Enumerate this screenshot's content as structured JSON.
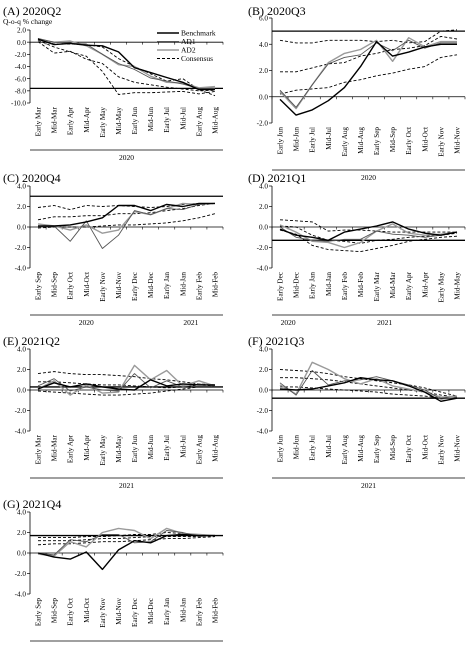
{
  "figure": {
    "ylabel": "Q-o-q % change",
    "legend": [
      "Benchmark",
      "AD1",
      "AD2",
      "Consensus"
    ]
  },
  "chart_data": [
    {
      "id": "A",
      "type": "line",
      "title": "(A) 2020Q2",
      "ylim": [
        -10.0,
        2.0
      ],
      "yticks": [
        -10.0,
        -8.0,
        -6.0,
        -4.0,
        -2.0,
        0.0,
        2.0
      ],
      "categories": [
        "Early Mar",
        "Mid-Mar",
        "Early Apr",
        "Mid-Apr",
        "Early May",
        "Mid-May",
        "Early Jun",
        "Mid-Jun",
        "Early Jul",
        "Mid-Jul",
        "Early Aug",
        "Mid-Aug"
      ],
      "years": [
        {
          "label": "2020",
          "from": 0,
          "to": 11
        }
      ],
      "hline": -7.6,
      "series": [
        {
          "name": "Benchmark",
          "style": "benchmark",
          "values": [
            0.5,
            -0.4,
            -0.2,
            -0.5,
            -0.6,
            -1.6,
            -4.2,
            -5.0,
            -5.8,
            -6.6,
            -7.8,
            -7.8
          ]
        },
        {
          "name": "AD1",
          "style": "ad1",
          "values": [
            0.6,
            0.0,
            -0.2,
            -0.3,
            -2.0,
            -3.5,
            -4.5,
            -5.9,
            -6.4,
            -6.9,
            -7.6,
            -7.6
          ]
        },
        {
          "name": "AD2",
          "style": "ad2",
          "values": [
            0.4,
            0.0,
            0.2,
            -0.6,
            -2.0,
            -3.7,
            -4.0,
            -5.6,
            -6.6,
            -6.7,
            -7.5,
            -7.3
          ]
        },
        {
          "name": "Consensus",
          "style": "consensus",
          "values": [
            0.6,
            -0.3,
            -0.3,
            -0.4,
            -0.8,
            -2.7,
            -4.0,
            -5.2,
            -6.4,
            -6.0,
            -7.8,
            -8.8
          ]
        },
        {
          "style": "consensus",
          "values": [
            0.3,
            -0.8,
            -1.6,
            -2.3,
            -4.8,
            -8.6,
            -8.3,
            -8.3,
            -8.2,
            -8.1,
            -8.5,
            -8.1
          ]
        },
        {
          "style": "consensus",
          "values": [
            0.1,
            -1.8,
            -1.5,
            -2.8,
            -3.5,
            -5.7,
            -6.6,
            -7.0,
            -7.4,
            -7.7,
            -8.0,
            -7.9
          ]
        }
      ]
    },
    {
      "id": "B",
      "type": "line",
      "title": "(B) 2020Q3",
      "ylim": [
        -2.0,
        6.0
      ],
      "yticks": [
        -2.0,
        0.0,
        2.0,
        4.0,
        6.0
      ],
      "categories": [
        "Early Jun",
        "Mid-Jun",
        "Early Jul",
        "Mid-Jul",
        "Early Aug",
        "Mid-Aug",
        "Early Sep",
        "Mid-Sep",
        "Early Oct",
        "Mid-Oct",
        "Early Nov",
        "Mid-Nov"
      ],
      "years": [
        {
          "label": "2020",
          "from": 0,
          "to": 11
        }
      ],
      "hline": 5.0,
      "series": [
        {
          "style": "benchmark",
          "values": [
            -0.2,
            -1.4,
            -1.0,
            -0.3,
            0.7,
            2.3,
            4.2,
            3.1,
            3.4,
            3.8,
            4.0,
            4.0
          ]
        },
        {
          "style": "ad1",
          "values": [
            0.5,
            -0.8,
            0.9,
            2.5,
            3.0,
            3.2,
            4.1,
            3.5,
            4.3,
            3.7,
            4.1,
            4.1
          ]
        },
        {
          "style": "ad2",
          "values": [
            0.4,
            -0.9,
            0.9,
            2.6,
            3.3,
            3.6,
            4.3,
            2.7,
            4.5,
            3.8,
            4.2,
            4.2
          ]
        },
        {
          "style": "consensus",
          "values": [
            4.3,
            4.1,
            4.1,
            4.3,
            4.3,
            4.3,
            4.2,
            4.3,
            4.1,
            4.2,
            5.0,
            5.1
          ]
        },
        {
          "style": "consensus",
          "values": [
            1.9,
            1.9,
            2.2,
            2.5,
            2.6,
            3.1,
            3.3,
            3.6,
            3.7,
            3.9,
            4.6,
            4.4
          ]
        },
        {
          "style": "consensus",
          "values": [
            0.2,
            0.5,
            0.6,
            0.7,
            1.1,
            1.3,
            1.6,
            1.8,
            2.1,
            2.3,
            3.0,
            3.2
          ]
        }
      ]
    },
    {
      "id": "C",
      "type": "line",
      "title": "(C) 2020Q4",
      "ylim": [
        -4.0,
        4.0
      ],
      "yticks": [
        -4.0,
        -2.0,
        0.0,
        2.0,
        4.0
      ],
      "categories": [
        "Early Sep",
        "Mid-Sep",
        "Early Oct",
        "Mid-Oct",
        "Early Nov",
        "Mid-Nov",
        "Early Dec",
        "Mid-Dec",
        "Early Jan",
        "Mid-Jan",
        "Early Feb",
        "Mid-Feb"
      ],
      "years": [
        {
          "label": "2020",
          "from": 0,
          "to": 6
        },
        {
          "label": "2021",
          "from": 8,
          "to": 11
        }
      ],
      "hline": 3.0,
      "series": [
        {
          "style": "benchmark",
          "values": [
            0.1,
            0.1,
            0.2,
            0.5,
            0.9,
            2.1,
            2.1,
            1.6,
            2.2,
            2.0,
            2.3,
            2.3
          ]
        },
        {
          "style": "ad1",
          "values": [
            0.0,
            0.1,
            -1.4,
            0.6,
            -2.1,
            -0.8,
            1.6,
            1.2,
            1.8,
            1.7,
            2.2,
            2.3
          ]
        },
        {
          "style": "ad2",
          "values": [
            0.3,
            0.1,
            -0.3,
            0.2,
            -0.6,
            -0.3,
            1.5,
            1.2,
            1.8,
            2.3,
            2.2,
            2.3
          ]
        },
        {
          "style": "consensus",
          "values": [
            1.9,
            2.1,
            1.7,
            2.1,
            2.0,
            2.1,
            2.0,
            1.9,
            2.0,
            2.2,
            2.3,
            2.3
          ]
        },
        {
          "style": "consensus",
          "values": [
            0.7,
            1.0,
            1.0,
            1.1,
            1.1,
            1.3,
            1.3,
            1.4,
            1.6,
            1.8,
            2.1,
            2.3
          ]
        },
        {
          "style": "consensus",
          "values": [
            -0.1,
            0.0,
            0.0,
            0.0,
            0.1,
            0.2,
            0.2,
            0.3,
            0.4,
            0.6,
            0.9,
            1.3
          ]
        }
      ]
    },
    {
      "id": "D",
      "type": "line",
      "title": "(D) 2021Q1",
      "ylim": [
        -4.0,
        4.0
      ],
      "yticks": [
        -4.0,
        -2.0,
        0.0,
        2.0,
        4.0
      ],
      "categories": [
        "Early Dec",
        "Mid-Dec",
        "Early Jan",
        "Mid-Jan",
        "Early Feb",
        "Mid-Feb",
        "Early Mar",
        "Mid-Mar",
        "Early Apr",
        "Mid-Apr",
        "Early May",
        "Mid-May"
      ],
      "years": [
        {
          "label": "2020",
          "from": 0,
          "to": 1
        },
        {
          "label": "2021",
          "from": 2,
          "to": 11
        }
      ],
      "hline": -1.3,
      "series": [
        {
          "style": "benchmark",
          "values": [
            -0.2,
            -0.8,
            -1.0,
            -1.3,
            -0.5,
            -0.2,
            0.1,
            0.5,
            -0.2,
            -0.6,
            -0.8,
            -0.5
          ]
        },
        {
          "style": "ad1",
          "values": [
            0.0,
            -1.0,
            -1.3,
            -1.4,
            -1.2,
            -1.2,
            -0.4,
            -0.7,
            -0.8,
            -1.0,
            -0.8,
            -0.5
          ]
        },
        {
          "style": "ad2",
          "values": [
            0.2,
            -0.5,
            -1.4,
            -1.5,
            -2.0,
            -1.5,
            -0.4,
            0.3,
            -0.6,
            -0.8,
            -0.7,
            -0.5
          ]
        },
        {
          "style": "consensus",
          "values": [
            0.7,
            0.6,
            0.5,
            -0.4,
            -0.3,
            -0.3,
            -0.4,
            -0.5,
            -0.5,
            -0.5,
            -0.5,
            -0.5
          ]
        },
        {
          "style": "consensus",
          "values": [
            0.1,
            0.0,
            -0.8,
            -1.3,
            -1.4,
            -1.6,
            -1.3,
            -1.2,
            -1.0,
            -0.9,
            -0.8,
            -0.6
          ]
        },
        {
          "style": "consensus",
          "values": [
            -0.3,
            -0.7,
            -1.8,
            -2.2,
            -2.3,
            -2.4,
            -2.1,
            -1.8,
            -1.4,
            -1.2,
            -1.0,
            -0.9
          ]
        }
      ]
    },
    {
      "id": "E",
      "type": "line",
      "title": "(E) 2021Q2",
      "ylim": [
        -4.0,
        4.0
      ],
      "yticks": [
        -4.0,
        -2.0,
        0.0,
        2.0,
        4.0
      ],
      "categories": [
        "Early Mar",
        "Mid-Mar",
        "Early Apr",
        "Mid-Apr",
        "Early May",
        "Mid-May",
        "Early Jun",
        "Mid-Jun",
        "Early Jul",
        "Mid-Jul",
        "Early Aug",
        "Mid-Aug"
      ],
      "years": [
        {
          "label": "2021",
          "from": 0,
          "to": 11
        }
      ],
      "hline": 0.3,
      "series": [
        {
          "style": "benchmark",
          "values": [
            0.1,
            0.7,
            0.3,
            0.6,
            0.3,
            0.1,
            0.0,
            1.0,
            0.4,
            0.6,
            0.5,
            0.5
          ]
        },
        {
          "style": "ad1",
          "values": [
            0.4,
            1.1,
            -0.1,
            0.3,
            0.0,
            -0.1,
            1.6,
            0.2,
            0.9,
            0.3,
            0.6,
            0.4
          ]
        },
        {
          "style": "ad2",
          "values": [
            0.1,
            0.9,
            -0.5,
            0.5,
            -0.3,
            -0.2,
            2.4,
            1.0,
            1.9,
            0.4,
            0.9,
            0.4
          ]
        },
        {
          "style": "consensus",
          "values": [
            1.6,
            1.8,
            1.6,
            1.5,
            1.5,
            1.4,
            1.3,
            1.1,
            1.0,
            0.8,
            0.6,
            0.5
          ]
        },
        {
          "style": "consensus",
          "values": [
            0.8,
            0.8,
            0.7,
            0.6,
            0.5,
            0.5,
            0.4,
            0.3,
            0.2,
            0.3,
            0.5,
            0.4
          ]
        },
        {
          "style": "consensus",
          "values": [
            -0.1,
            -0.2,
            -0.3,
            -0.4,
            -0.5,
            -0.5,
            -0.4,
            -0.3,
            -0.1,
            0.1,
            0.3,
            0.3
          ]
        }
      ]
    },
    {
      "id": "F",
      "type": "line",
      "title": "(F) 2021Q3",
      "ylim": [
        -4.0,
        4.0
      ],
      "yticks": [
        -4.0,
        -2.0,
        0.0,
        2.0,
        4.0
      ],
      "categories": [
        "Early Jun",
        "Mid-Jun",
        "Early Jul",
        "Mid-Jul",
        "Early Aug",
        "Mid-Aug",
        "Early Sep",
        "Mid-Sep",
        "Early Oct",
        "Mid-Oct",
        "Early Nov",
        "Mid-Nov"
      ],
      "years": [
        {
          "label": "2021",
          "from": 0,
          "to": 11
        }
      ],
      "hline": -0.8,
      "series": [
        {
          "style": "benchmark",
          "values": [
            0.1,
            0.0,
            0.1,
            0.4,
            0.7,
            1.2,
            1.0,
            0.9,
            0.4,
            -0.2,
            -1.1,
            -0.8
          ]
        },
        {
          "style": "ad1",
          "values": [
            0.7,
            -0.5,
            1.9,
            0.5,
            0.9,
            1.0,
            1.3,
            0.9,
            0.5,
            0.0,
            -0.9,
            -0.7
          ]
        },
        {
          "style": "ad2",
          "values": [
            0.5,
            -0.4,
            2.7,
            2.0,
            1.1,
            0.6,
            1.1,
            0.4,
            0.1,
            -0.2,
            -0.7,
            -0.6
          ]
        },
        {
          "style": "consensus",
          "values": [
            2.0,
            1.9,
            1.8,
            1.6,
            1.3,
            1.1,
            0.9,
            0.7,
            0.5,
            0.2,
            -0.2,
            -0.6
          ]
        },
        {
          "style": "consensus",
          "values": [
            1.2,
            1.2,
            1.1,
            1.0,
            0.8,
            0.6,
            0.4,
            0.2,
            0.0,
            -0.2,
            -0.5,
            -0.7
          ]
        },
        {
          "style": "consensus",
          "values": [
            0.3,
            0.3,
            0.2,
            0.1,
            0.0,
            -0.1,
            -0.2,
            -0.4,
            -0.5,
            -0.6,
            -0.8,
            -0.8
          ]
        }
      ]
    },
    {
      "id": "G",
      "type": "line",
      "title": "(G) 2021Q4",
      "ylim": [
        -4.0,
        4.0
      ],
      "yticks": [
        -4.0,
        -2.0,
        0.0,
        2.0,
        4.0
      ],
      "categories": [
        "Early Sep",
        "Mid-Sep",
        "Early Oct",
        "Mid-Oct",
        "Early Nov",
        "Mid-Nov",
        "Early Dec",
        "Mid-Dec",
        "Early Jan",
        "Mid-Jan",
        "Early Feb",
        "Mid-Feb"
      ],
      "years": [
        {
          "label": "2021",
          "from": 0,
          "to": 7
        },
        {
          "label": "2022",
          "from": 8,
          "to": 11
        }
      ],
      "hline": 1.7,
      "series": [
        {
          "style": "benchmark",
          "values": [
            0.0,
            -0.4,
            -0.6,
            0.1,
            -1.6,
            0.3,
            1.2,
            1.0,
            1.7,
            1.8,
            1.7,
            1.7
          ]
        },
        {
          "style": "ad1",
          "values": [
            0.0,
            -0.2,
            1.3,
            1.1,
            1.8,
            1.8,
            1.0,
            1.1,
            2.2,
            2.0,
            1.6,
            1.7
          ]
        },
        {
          "style": "ad2",
          "values": [
            -0.1,
            -0.3,
            1.1,
            0.6,
            2.0,
            2.4,
            2.2,
            1.4,
            2.4,
            1.9,
            1.8,
            1.7
          ]
        },
        {
          "style": "consensus",
          "values": [
            1.5,
            1.5,
            1.5,
            1.6,
            1.6,
            1.7,
            1.8,
            1.8,
            2.0,
            1.9,
            1.8,
            1.7
          ]
        },
        {
          "style": "consensus",
          "values": [
            1.2,
            1.2,
            1.2,
            1.3,
            1.4,
            1.4,
            1.5,
            1.6,
            1.6,
            1.6,
            1.6,
            1.7
          ]
        },
        {
          "style": "consensus",
          "values": [
            0.8,
            0.9,
            0.9,
            1.0,
            1.1,
            1.1,
            1.2,
            1.3,
            1.4,
            1.4,
            1.5,
            1.6
          ]
        }
      ]
    }
  ]
}
